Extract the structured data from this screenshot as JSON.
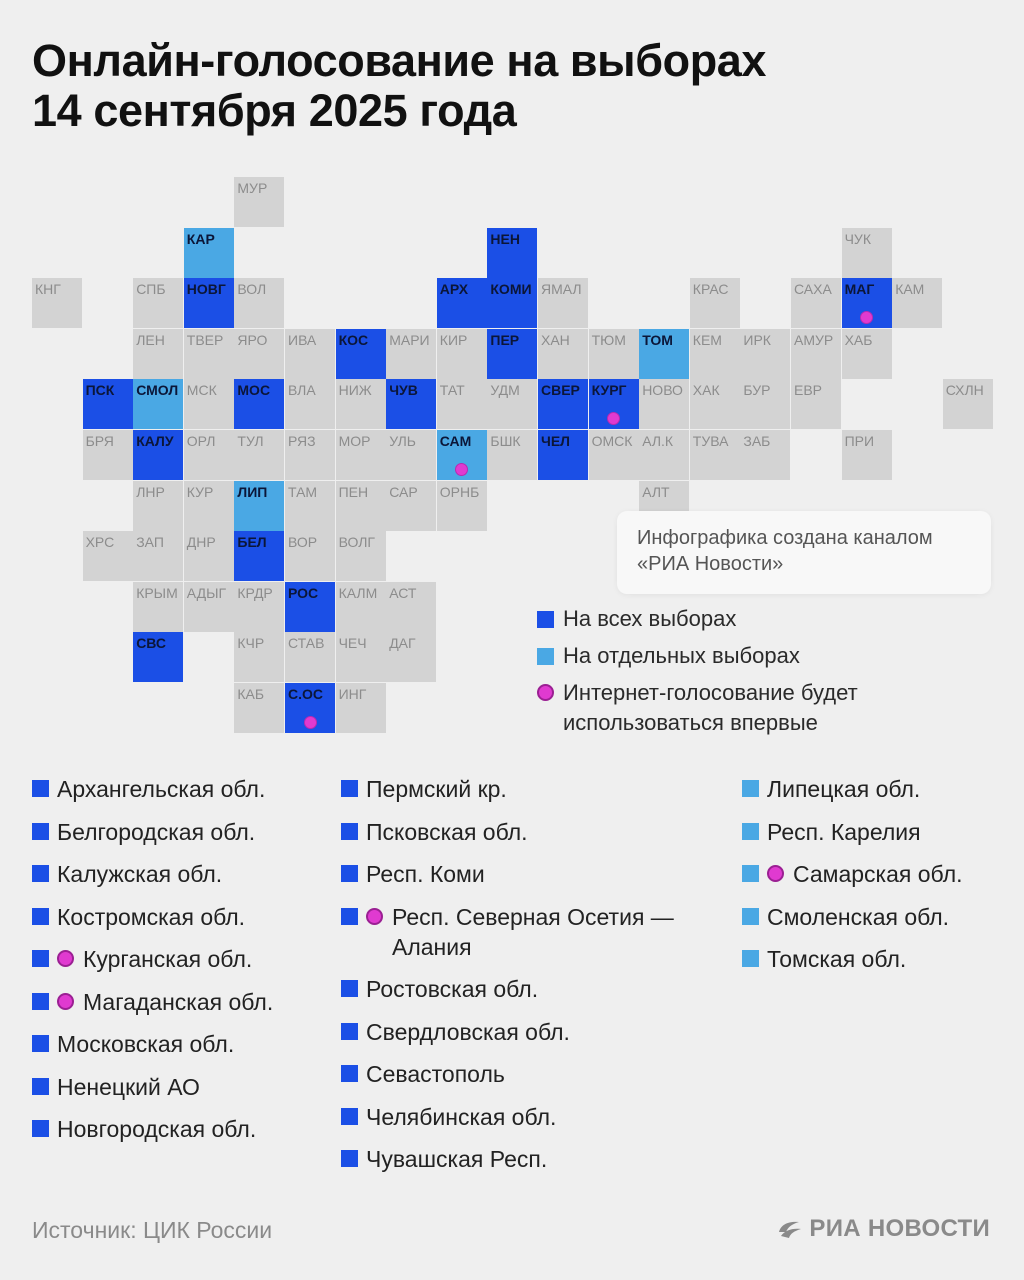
{
  "title_line1": "Онлайн-голосование на выборах",
  "title_line2": "14 сентября 2025 года",
  "colors": {
    "all": "#1b4fe6",
    "partial": "#4aa8e4",
    "none": "#d3d3d3",
    "first_time": "#e03ad0"
  },
  "tiles": [
    {
      "label": "МУР",
      "col": 4,
      "row": 0,
      "status": "none",
      "first": false
    },
    {
      "label": "КАР",
      "col": 3,
      "row": 1,
      "status": "partial",
      "first": false
    },
    {
      "label": "НЕН",
      "col": 9,
      "row": 1,
      "status": "all",
      "first": false
    },
    {
      "label": "ЧУК",
      "col": 16,
      "row": 1,
      "status": "none",
      "first": false
    },
    {
      "label": "КНГ",
      "col": 0,
      "row": 2,
      "status": "none",
      "first": false
    },
    {
      "label": "СПБ",
      "col": 2,
      "row": 2,
      "status": "none",
      "first": false
    },
    {
      "label": "НОВГ",
      "col": 3,
      "row": 2,
      "status": "all",
      "first": false
    },
    {
      "label": "ВОЛ",
      "col": 4,
      "row": 2,
      "status": "none",
      "first": false
    },
    {
      "label": "АРХ",
      "col": 8,
      "row": 2,
      "status": "all",
      "first": false
    },
    {
      "label": "КОМИ",
      "col": 9,
      "row": 2,
      "status": "all",
      "first": false
    },
    {
      "label": "ЯМАЛ",
      "col": 10,
      "row": 2,
      "status": "none",
      "first": false
    },
    {
      "label": "КРАС",
      "col": 13,
      "row": 2,
      "status": "none",
      "first": false
    },
    {
      "label": "САХА",
      "col": 15,
      "row": 2,
      "status": "none",
      "first": false
    },
    {
      "label": "МАГ",
      "col": 16,
      "row": 2,
      "status": "all",
      "first": true
    },
    {
      "label": "КАМ",
      "col": 17,
      "row": 2,
      "status": "none",
      "first": false
    },
    {
      "label": "ЛЕН",
      "col": 2,
      "row": 3,
      "status": "none",
      "first": false
    },
    {
      "label": "ТВЕР",
      "col": 3,
      "row": 3,
      "status": "none",
      "first": false
    },
    {
      "label": "ЯРО",
      "col": 4,
      "row": 3,
      "status": "none",
      "first": false
    },
    {
      "label": "ИВА",
      "col": 5,
      "row": 3,
      "status": "none",
      "first": false
    },
    {
      "label": "КОС",
      "col": 6,
      "row": 3,
      "status": "all",
      "first": false
    },
    {
      "label": "МАРИ",
      "col": 7,
      "row": 3,
      "status": "none",
      "first": false
    },
    {
      "label": "КИР",
      "col": 8,
      "row": 3,
      "status": "none",
      "first": false
    },
    {
      "label": "ПЕР",
      "col": 9,
      "row": 3,
      "status": "all",
      "first": false
    },
    {
      "label": "ХАН",
      "col": 10,
      "row": 3,
      "status": "none",
      "first": false
    },
    {
      "label": "ТЮМ",
      "col": 11,
      "row": 3,
      "status": "none",
      "first": false
    },
    {
      "label": "ТОМ",
      "col": 12,
      "row": 3,
      "status": "partial",
      "first": false
    },
    {
      "label": "КЕМ",
      "col": 13,
      "row": 3,
      "status": "none",
      "first": false
    },
    {
      "label": "ИРК",
      "col": 14,
      "row": 3,
      "status": "none",
      "first": false
    },
    {
      "label": "АМУР",
      "col": 15,
      "row": 3,
      "status": "none",
      "first": false
    },
    {
      "label": "ХАБ",
      "col": 16,
      "row": 3,
      "status": "none",
      "first": false
    },
    {
      "label": "ПСК",
      "col": 1,
      "row": 4,
      "status": "all",
      "first": false
    },
    {
      "label": "СМОЛ",
      "col": 2,
      "row": 4,
      "status": "partial",
      "first": false
    },
    {
      "label": "МСК",
      "col": 3,
      "row": 4,
      "status": "none",
      "first": false
    },
    {
      "label": "МОС",
      "col": 4,
      "row": 4,
      "status": "all",
      "first": false
    },
    {
      "label": "ВЛА",
      "col": 5,
      "row": 4,
      "status": "none",
      "first": false
    },
    {
      "label": "НИЖ",
      "col": 6,
      "row": 4,
      "status": "none",
      "first": false
    },
    {
      "label": "ЧУВ",
      "col": 7,
      "row": 4,
      "status": "all",
      "first": false
    },
    {
      "label": "ТАТ",
      "col": 8,
      "row": 4,
      "status": "none",
      "first": false
    },
    {
      "label": "УДМ",
      "col": 9,
      "row": 4,
      "status": "none",
      "first": false
    },
    {
      "label": "СВЕР",
      "col": 10,
      "row": 4,
      "status": "all",
      "first": false
    },
    {
      "label": "КУРГ",
      "col": 11,
      "row": 4,
      "status": "all",
      "first": true
    },
    {
      "label": "НОВО",
      "col": 12,
      "row": 4,
      "status": "none",
      "first": false
    },
    {
      "label": "ХАК",
      "col": 13,
      "row": 4,
      "status": "none",
      "first": false
    },
    {
      "label": "БУР",
      "col": 14,
      "row": 4,
      "status": "none",
      "first": false
    },
    {
      "label": "ЕВР",
      "col": 15,
      "row": 4,
      "status": "none",
      "first": false
    },
    {
      "label": "СХЛН",
      "col": 18,
      "row": 4,
      "status": "none",
      "first": false
    },
    {
      "label": "БРЯ",
      "col": 1,
      "row": 5,
      "status": "none",
      "first": false
    },
    {
      "label": "КАЛУ",
      "col": 2,
      "row": 5,
      "status": "all",
      "first": false
    },
    {
      "label": "ОРЛ",
      "col": 3,
      "row": 5,
      "status": "none",
      "first": false
    },
    {
      "label": "ТУЛ",
      "col": 4,
      "row": 5,
      "status": "none",
      "first": false
    },
    {
      "label": "РЯЗ",
      "col": 5,
      "row": 5,
      "status": "none",
      "first": false
    },
    {
      "label": "МОР",
      "col": 6,
      "row": 5,
      "status": "none",
      "first": false
    },
    {
      "label": "УЛЬ",
      "col": 7,
      "row": 5,
      "status": "none",
      "first": false
    },
    {
      "label": "САМ",
      "col": 8,
      "row": 5,
      "status": "partial",
      "first": true
    },
    {
      "label": "БШК",
      "col": 9,
      "row": 5,
      "status": "none",
      "first": false
    },
    {
      "label": "ЧЕЛ",
      "col": 10,
      "row": 5,
      "status": "all",
      "first": false
    },
    {
      "label": "ОМСК",
      "col": 11,
      "row": 5,
      "status": "none",
      "first": false
    },
    {
      "label": "АЛ.К",
      "col": 12,
      "row": 5,
      "status": "none",
      "first": false
    },
    {
      "label": "ТУВА",
      "col": 13,
      "row": 5,
      "status": "none",
      "first": false
    },
    {
      "label": "ЗАБ",
      "col": 14,
      "row": 5,
      "status": "none",
      "first": false
    },
    {
      "label": "ПРИ",
      "col": 16,
      "row": 5,
      "status": "none",
      "first": false
    },
    {
      "label": "ЛНР",
      "col": 2,
      "row": 6,
      "status": "none",
      "first": false
    },
    {
      "label": "КУР",
      "col": 3,
      "row": 6,
      "status": "none",
      "first": false
    },
    {
      "label": "ЛИП",
      "col": 4,
      "row": 6,
      "status": "partial",
      "first": false
    },
    {
      "label": "ТАМ",
      "col": 5,
      "row": 6,
      "status": "none",
      "first": false
    },
    {
      "label": "ПЕН",
      "col": 6,
      "row": 6,
      "status": "none",
      "first": false
    },
    {
      "label": "САР",
      "col": 7,
      "row": 6,
      "status": "none",
      "first": false
    },
    {
      "label": "ОРНБ",
      "col": 8,
      "row": 6,
      "status": "none",
      "first": false
    },
    {
      "label": "АЛТ",
      "col": 12,
      "row": 6,
      "status": "none",
      "first": false
    },
    {
      "label": "ХРС",
      "col": 1,
      "row": 7,
      "status": "none",
      "first": false
    },
    {
      "label": "ЗАП",
      "col": 2,
      "row": 7,
      "status": "none",
      "first": false
    },
    {
      "label": "ДНР",
      "col": 3,
      "row": 7,
      "status": "none",
      "first": false
    },
    {
      "label": "БЕЛ",
      "col": 4,
      "row": 7,
      "status": "all",
      "first": false
    },
    {
      "label": "ВОР",
      "col": 5,
      "row": 7,
      "status": "none",
      "first": false
    },
    {
      "label": "ВОЛГ",
      "col": 6,
      "row": 7,
      "status": "none",
      "first": false
    },
    {
      "label": "КРЫМ",
      "col": 2,
      "row": 8,
      "status": "none",
      "first": false
    },
    {
      "label": "АДЫГ",
      "col": 3,
      "row": 8,
      "status": "none",
      "first": false
    },
    {
      "label": "КРДР",
      "col": 4,
      "row": 8,
      "status": "none",
      "first": false
    },
    {
      "label": "РОС",
      "col": 5,
      "row": 8,
      "status": "all",
      "first": false
    },
    {
      "label": "КАЛМ",
      "col": 6,
      "row": 8,
      "status": "none",
      "first": false
    },
    {
      "label": "АСТ",
      "col": 7,
      "row": 8,
      "status": "none",
      "first": false
    },
    {
      "label": "СВС",
      "col": 2,
      "row": 9,
      "status": "all",
      "first": false
    },
    {
      "label": "КЧР",
      "col": 4,
      "row": 9,
      "status": "none",
      "first": false
    },
    {
      "label": "СТАВ",
      "col": 5,
      "row": 9,
      "status": "none",
      "first": false
    },
    {
      "label": "ЧЕЧ",
      "col": 6,
      "row": 9,
      "status": "none",
      "first": false
    },
    {
      "label": "ДАГ",
      "col": 7,
      "row": 9,
      "status": "none",
      "first": false
    },
    {
      "label": "КАБ",
      "col": 4,
      "row": 10,
      "status": "none",
      "first": false
    },
    {
      "label": "С.ОС",
      "col": 5,
      "row": 10,
      "status": "all",
      "first": true
    },
    {
      "label": "ИНГ",
      "col": 6,
      "row": 10,
      "status": "none",
      "first": false
    }
  ],
  "credit": "Инфографика создана каналом «РИА Новости»",
  "legend": {
    "all": "На всех выборах",
    "partial": "На отдельных выборах",
    "first": "Интернет-голосование будет использоваться впервые"
  },
  "columns": [
    [
      {
        "name": "Архангельская обл.",
        "status": "all",
        "first": false
      },
      {
        "name": "Белгородская обл.",
        "status": "all",
        "first": false
      },
      {
        "name": "Калужская обл.",
        "status": "all",
        "first": false
      },
      {
        "name": "Костромская обл.",
        "status": "all",
        "first": false
      },
      {
        "name": "Курганская обл.",
        "status": "all",
        "first": true
      },
      {
        "name": "Магаданская обл.",
        "status": "all",
        "first": true
      },
      {
        "name": "Московская обл.",
        "status": "all",
        "first": false
      },
      {
        "name": "Ненецкий АО",
        "status": "all",
        "first": false
      },
      {
        "name": "Новгородская обл.",
        "status": "all",
        "first": false
      }
    ],
    [
      {
        "name": "Пермский кр.",
        "status": "all",
        "first": false
      },
      {
        "name": "Псковская обл.",
        "status": "all",
        "first": false
      },
      {
        "name": "Респ. Коми",
        "status": "all",
        "first": false
      },
      {
        "name": "Респ. Северная Осетия — Алания",
        "status": "all",
        "first": true
      },
      {
        "name": "Ростовская обл.",
        "status": "all",
        "first": false
      },
      {
        "name": "Свердловская обл.",
        "status": "all",
        "first": false
      },
      {
        "name": "Севастополь",
        "status": "all",
        "first": false
      },
      {
        "name": "Челябинская обл.",
        "status": "all",
        "first": false
      },
      {
        "name": "Чувашская Респ.",
        "status": "all",
        "first": false
      }
    ],
    [
      {
        "name": "Липецкая обл.",
        "status": "partial",
        "first": false
      },
      {
        "name": "Респ. Карелия",
        "status": "partial",
        "first": false
      },
      {
        "name": "Самарская обл.",
        "status": "partial",
        "first": true
      },
      {
        "name": "Смоленская обл.",
        "status": "partial",
        "first": false
      },
      {
        "name": "Томская обл.",
        "status": "partial",
        "first": false
      }
    ]
  ],
  "source": "Источник: ЦИК России",
  "brand": "РИА НОВОСТИ"
}
